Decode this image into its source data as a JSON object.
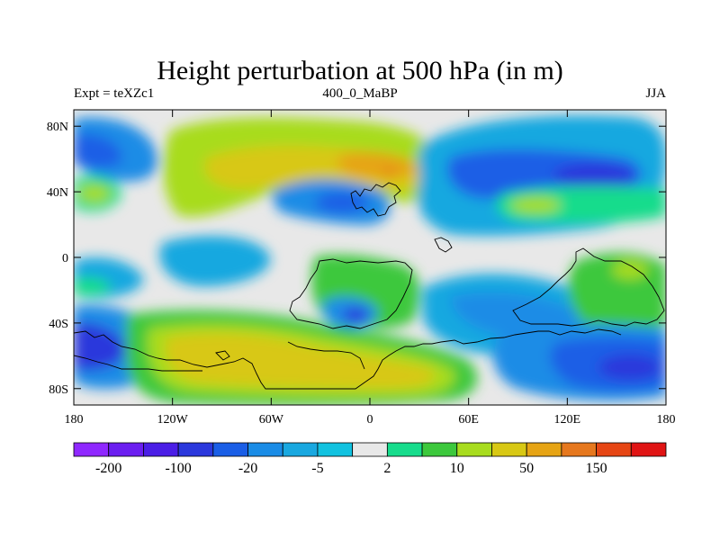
{
  "title": "Height perturbation at 500 hPa (in m)",
  "left_label": "Expt = teXZc1",
  "center_label": "400_0_MaBP",
  "right_label": "JJA",
  "x_ticks": [
    {
      "lon": -180,
      "label": "180"
    },
    {
      "lon": -120,
      "label": "120W"
    },
    {
      "lon": -60,
      "label": "60W"
    },
    {
      "lon": 0,
      "label": "0"
    },
    {
      "lon": 60,
      "label": "60E"
    },
    {
      "lon": 120,
      "label": "120E"
    },
    {
      "lon": 180,
      "label": "180"
    }
  ],
  "y_ticks": [
    {
      "lat": 80,
      "label": "80N"
    },
    {
      "lat": 40,
      "label": "40N"
    },
    {
      "lat": 0,
      "label": "0"
    },
    {
      "lat": -40,
      "label": "40S"
    },
    {
      "lat": -80,
      "label": "80S"
    }
  ],
  "colorbar": {
    "colors": [
      "#8f28ff",
      "#6b1ef0",
      "#4b1ee6",
      "#2b38dc",
      "#1a5ee6",
      "#1a8ce6",
      "#19a8e0",
      "#12c2e0",
      "#e8e8e8",
      "#17dc8c",
      "#3cc83c",
      "#a8dc1e",
      "#d8c814",
      "#e6a414",
      "#e6781e",
      "#e64614",
      "#e01414"
    ],
    "labels": [
      {
        "after_box": 1,
        "text": "-200"
      },
      {
        "after_box": 3,
        "text": "-100"
      },
      {
        "after_box": 5,
        "text": "-20"
      },
      {
        "after_box": 7,
        "text": "-5"
      },
      {
        "after_box": 9,
        "text": "2"
      },
      {
        "after_box": 11,
        "text": "10"
      },
      {
        "after_box": 13,
        "text": "50"
      },
      {
        "after_box": 15,
        "text": "150"
      }
    ]
  }
}
